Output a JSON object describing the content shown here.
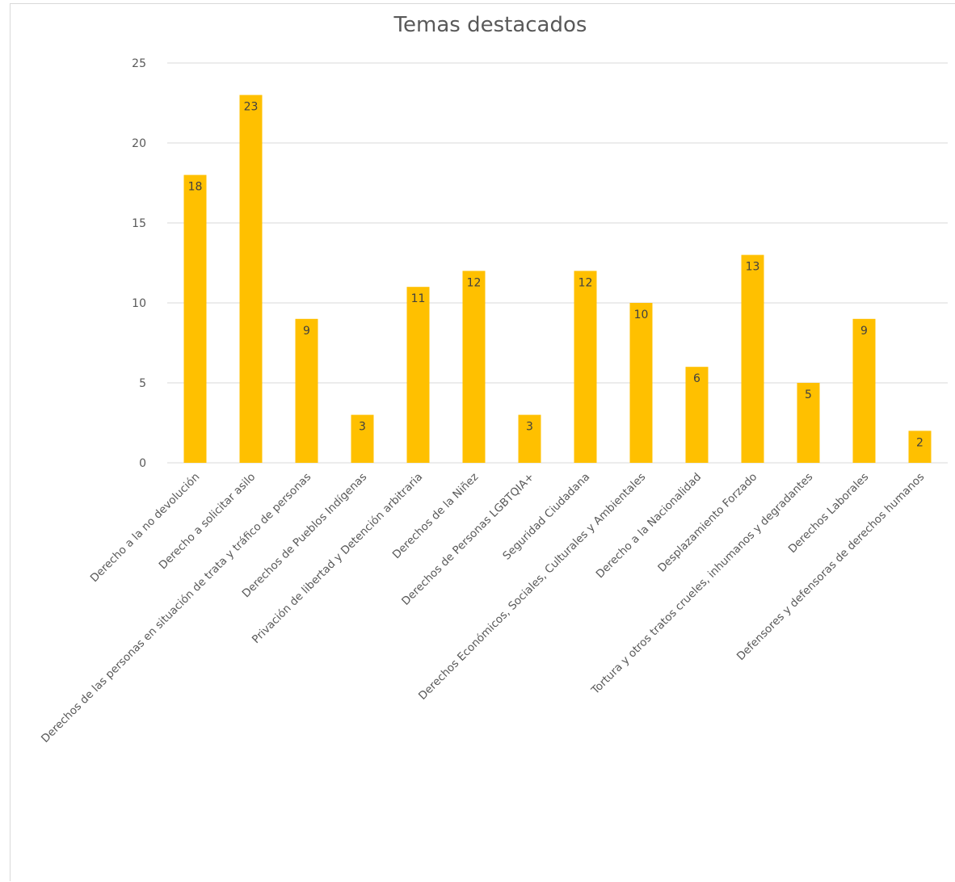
{
  "chart_data": {
    "type": "bar",
    "title": "Temas destacados",
    "xlabel": "",
    "ylabel": "",
    "ylim": [
      0,
      25
    ],
    "yticks": [
      0,
      5,
      10,
      15,
      20,
      25
    ],
    "grid": true,
    "legend": "none",
    "data_labels": true,
    "bar_color": "#FFC000",
    "categories": [
      "Derecho a la no devolución",
      "Derecho a solicitar asilo",
      "Derechos de las personas en situación de trata y tráfico de personas",
      "Derechos de Pueblos Indígenas",
      "Privación de libertad y Detención arbitraria",
      "Derechos de la Niñez",
      "Derechos de Personas LGBTQIA+",
      "Seguridad Ciudadana",
      "Derechos Económicos, Sociales, Culturales y Ambientales",
      "Derecho a la Nacionalidad",
      "Desplazamiento Forzado",
      "Tortura y otros tratos crueles, inhumanos y degradantes",
      "Derechos Laborales",
      "Defensores y defensoras de derechos humanos"
    ],
    "values": [
      18,
      23,
      9,
      3,
      11,
      12,
      3,
      12,
      10,
      6,
      13,
      5,
      9,
      2
    ]
  }
}
